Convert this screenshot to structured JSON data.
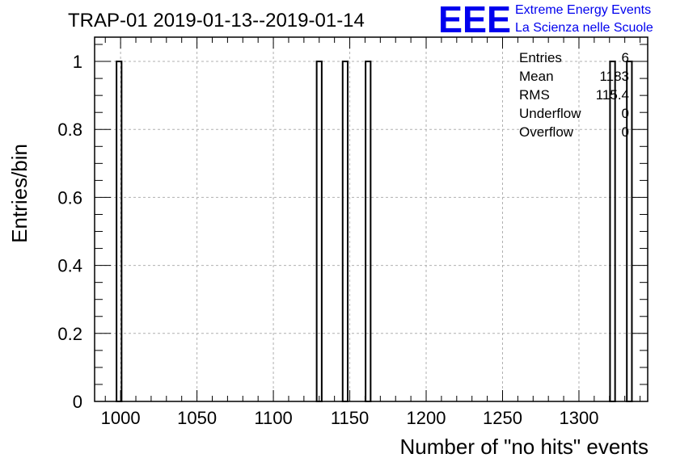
{
  "chart_data": {
    "type": "bar",
    "title": "TRAP-01 2019-01-13--2019-01-14",
    "xlabel": "Number of \"no hits\" events",
    "ylabel": "Entries/bin",
    "xlim": [
      983,
      1345
    ],
    "ylim": [
      0,
      1.0714
    ],
    "grid": true,
    "bins": [
      {
        "x": 999,
        "value": 1
      },
      {
        "x": 1130,
        "value": 1
      },
      {
        "x": 1147,
        "value": 1
      },
      {
        "x": 1162,
        "value": 1
      },
      {
        "x": 1322,
        "value": 1
      },
      {
        "x": 1333,
        "value": 1
      }
    ],
    "bin_width": 3.3,
    "x_ticks": [
      "1000",
      "1050",
      "1100",
      "1150",
      "1200",
      "1250",
      "1300"
    ],
    "x_tick_values": [
      1000,
      1050,
      1100,
      1150,
      1200,
      1250,
      1300
    ],
    "y_ticks": [
      "0",
      "0.2",
      "0.4",
      "0.6",
      "0.8",
      "1"
    ],
    "y_tick_values": [
      0,
      0.2,
      0.4,
      0.6,
      0.8,
      1
    ],
    "stats": [
      {
        "label": "Entries",
        "value": "6"
      },
      {
        "label": "Mean",
        "value": "1183"
      },
      {
        "label": "RMS",
        "value": "115.4"
      },
      {
        "label": "Underflow",
        "value": "0"
      },
      {
        "label": "Overflow",
        "value": "0"
      }
    ],
    "logo": {
      "mark": "EEE",
      "line1": "Extreme Energy Events",
      "line2": "La Scienza nelle Scuole",
      "color": "#0000ee"
    },
    "bar_color": "#000000",
    "grid_color": "#b0b0b0"
  }
}
